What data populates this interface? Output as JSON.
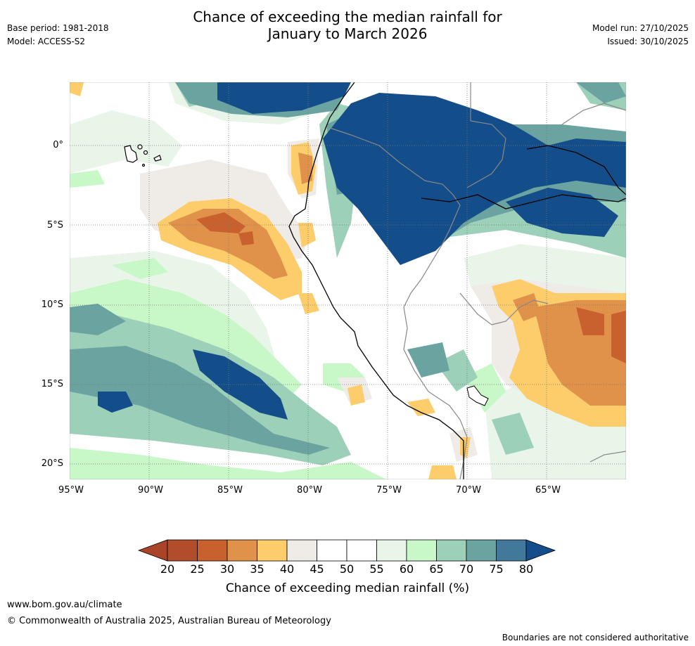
{
  "header": {
    "title_line1": "Chance of exceeding the median rainfall for",
    "title_line2": "January to March 2026",
    "base_period": "Base period: 1981-2018",
    "model": "Model: ACCESS-S2",
    "model_run": "Model run: 27/10/2025",
    "issued": "Issued: 30/10/2025"
  },
  "map": {
    "lat_labels": [
      "0°",
      "5°S",
      "10°S",
      "15°S",
      "20°S"
    ],
    "lon_labels": [
      "95°W",
      "90°W",
      "85°W",
      "80°W",
      "75°W",
      "70°W",
      "65°W"
    ]
  },
  "colorbar": {
    "title": "Chance of exceeding median rainfall (%)",
    "ticks": [
      "20",
      "25",
      "30",
      "35",
      "40",
      "45",
      "50",
      "55",
      "60",
      "65",
      "70",
      "75",
      "80"
    ],
    "colors": [
      "#a9432a",
      "#b24d2c",
      "#c8612e",
      "#e0924a",
      "#fdcc6b",
      "#efece7",
      "#ffffff",
      "#ffffff",
      "#eaf5ea",
      "#c8f7c8",
      "#9dd0b9",
      "#6aa3a0",
      "#42789a",
      "#144e8a"
    ]
  },
  "footer": {
    "website": "www.bom.gov.au/climate",
    "copyright": "© Commonwealth of Australia 2025, Australian Bureau of Meteorology",
    "disclaimer": "Boundaries are not considered authoritative"
  }
}
